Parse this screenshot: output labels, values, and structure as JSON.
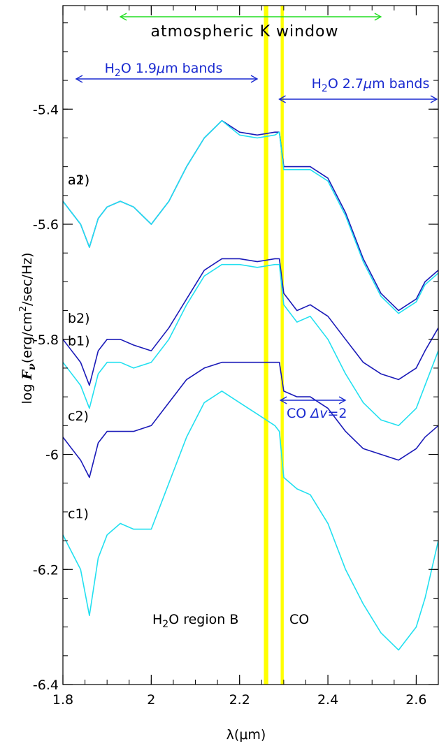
{
  "chart_data": {
    "type": "line",
    "title": "",
    "xlabel": "λ(μm)",
    "ylabel": "log F_ν(erg/cm²/sec/Hz)",
    "ylabel_parts": {
      "prefix": "log ",
      "symbol": "F",
      "subscript": "ν",
      "units_pre": "(erg/cm",
      "units_sup": "2",
      "units_post": "/sec/Hz)"
    },
    "xlim": [
      1.8,
      2.65
    ],
    "ylim": [
      -6.4,
      -5.22
    ],
    "xticks": [
      1.8,
      2.0,
      2.2,
      2.4,
      2.6
    ],
    "xtick_labels": [
      "1.8",
      "2",
      "2.2",
      "2.4",
      "2.6"
    ],
    "yticks": [
      -5.4,
      -5.6,
      -5.8,
      -6.0,
      -6.2,
      -6.4
    ],
    "ytick_labels": [
      "-5.4",
      "-5.6",
      "-5.8",
      "-6",
      "-6.2",
      "-6.4"
    ],
    "grid": false,
    "colors": {
      "dark": "#1a1ab8",
      "mid": "#1f4fd6",
      "cyan": "#22e0f0",
      "blue_anno": "#1a2ad0",
      "green": "#22dd22",
      "band": "#ffff00"
    },
    "highlight_bands": [
      {
        "x0": 2.255,
        "x1": 2.265
      },
      {
        "x0": 2.293,
        "x1": 2.3
      }
    ],
    "annotations": {
      "atm_window": {
        "text": "atmospheric K window",
        "x0": 1.93,
        "x1": 2.52
      },
      "h2o_19": {
        "pre": "H",
        "sub": "2",
        "post": "O 1.9",
        "mu": "μ",
        "tail": "m bands",
        "x0": 1.83,
        "x1": 2.24
      },
      "h2o_27": {
        "pre": "H",
        "sub": "2",
        "post": "O 2.7",
        "mu": "μ",
        "tail": "m bands",
        "x0": 2.29,
        "x1": 2.65
      },
      "co_dv": {
        "pre": "CO ",
        "delta": "Δv",
        "post": "=2",
        "x0": 2.28,
        "x1": 2.43
      },
      "region_b": {
        "pre": "H",
        "sub": "2",
        "post": "O region B"
      },
      "co_label": "CO"
    },
    "series": [
      {
        "label": "a2)",
        "color": "#1a1ab8",
        "x": [
          1.8,
          1.82,
          1.84,
          1.86,
          1.88,
          1.9,
          1.93,
          1.96,
          2.0,
          2.04,
          2.08,
          2.12,
          2.16,
          2.2,
          2.24,
          2.28,
          2.29,
          2.3,
          2.33,
          2.36,
          2.4,
          2.44,
          2.48,
          2.52,
          2.56,
          2.6,
          2.62,
          2.65
        ],
        "y": [
          -5.56,
          -5.58,
          -5.6,
          -5.64,
          -5.59,
          -5.57,
          -5.56,
          -5.57,
          -5.6,
          -5.56,
          -5.5,
          -5.45,
          -5.42,
          -5.44,
          -5.445,
          -5.44,
          -5.44,
          -5.5,
          -5.5,
          -5.5,
          -5.52,
          -5.58,
          -5.66,
          -5.72,
          -5.75,
          -5.73,
          -5.7,
          -5.68
        ]
      },
      {
        "label": "a1)",
        "color": "#22e0f0",
        "x": [
          1.8,
          1.82,
          1.84,
          1.86,
          1.88,
          1.9,
          1.93,
          1.96,
          2.0,
          2.04,
          2.08,
          2.12,
          2.16,
          2.2,
          2.24,
          2.28,
          2.29,
          2.3,
          2.33,
          2.36,
          2.4,
          2.44,
          2.48,
          2.52,
          2.56,
          2.6,
          2.62,
          2.65
        ],
        "y": [
          -5.56,
          -5.58,
          -5.6,
          -5.64,
          -5.59,
          -5.57,
          -5.56,
          -5.57,
          -5.6,
          -5.56,
          -5.5,
          -5.45,
          -5.42,
          -5.445,
          -5.45,
          -5.445,
          -5.44,
          -5.505,
          -5.505,
          -5.505,
          -5.525,
          -5.585,
          -5.665,
          -5.725,
          -5.755,
          -5.735,
          -5.705,
          -5.685
        ]
      },
      {
        "label": "b2)",
        "color": "#1a1ab8",
        "x": [
          1.8,
          1.82,
          1.84,
          1.86,
          1.88,
          1.9,
          1.93,
          1.96,
          2.0,
          2.04,
          2.08,
          2.12,
          2.16,
          2.2,
          2.24,
          2.28,
          2.29,
          2.3,
          2.33,
          2.36,
          2.4,
          2.44,
          2.48,
          2.52,
          2.56,
          2.6,
          2.62,
          2.65
        ],
        "y": [
          -5.8,
          -5.82,
          -5.84,
          -5.88,
          -5.82,
          -5.8,
          -5.8,
          -5.81,
          -5.82,
          -5.78,
          -5.73,
          -5.68,
          -5.66,
          -5.66,
          -5.665,
          -5.66,
          -5.66,
          -5.72,
          -5.75,
          -5.74,
          -5.76,
          -5.8,
          -5.84,
          -5.86,
          -5.87,
          -5.85,
          -5.82,
          -5.78
        ]
      },
      {
        "label": "b1)",
        "color": "#22e0f0",
        "x": [
          1.8,
          1.82,
          1.84,
          1.86,
          1.88,
          1.9,
          1.93,
          1.96,
          2.0,
          2.04,
          2.08,
          2.12,
          2.16,
          2.2,
          2.24,
          2.28,
          2.29,
          2.3,
          2.33,
          2.36,
          2.4,
          2.44,
          2.48,
          2.52,
          2.56,
          2.6,
          2.62,
          2.65
        ],
        "y": [
          -5.84,
          -5.86,
          -5.88,
          -5.92,
          -5.86,
          -5.84,
          -5.84,
          -5.85,
          -5.84,
          -5.8,
          -5.74,
          -5.69,
          -5.67,
          -5.67,
          -5.675,
          -5.67,
          -5.67,
          -5.74,
          -5.77,
          -5.76,
          -5.8,
          -5.86,
          -5.91,
          -5.94,
          -5.95,
          -5.92,
          -5.88,
          -5.82
        ]
      },
      {
        "label": "c2)",
        "color": "#1a1ab8",
        "x": [
          1.8,
          1.82,
          1.84,
          1.86,
          1.88,
          1.9,
          1.93,
          1.96,
          2.0,
          2.04,
          2.08,
          2.12,
          2.16,
          2.2,
          2.24,
          2.28,
          2.29,
          2.3,
          2.33,
          2.36,
          2.4,
          2.44,
          2.48,
          2.52,
          2.56,
          2.6,
          2.62,
          2.65
        ],
        "y": [
          -5.97,
          -5.99,
          -6.01,
          -6.04,
          -5.98,
          -5.96,
          -5.96,
          -5.96,
          -5.95,
          -5.91,
          -5.87,
          -5.85,
          -5.84,
          -5.84,
          -5.84,
          -5.84,
          -5.84,
          -5.89,
          -5.9,
          -5.9,
          -5.92,
          -5.96,
          -5.99,
          -6.0,
          -6.01,
          -5.99,
          -5.97,
          -5.95
        ]
      },
      {
        "label": "c1)",
        "color": "#22e0f0",
        "x": [
          1.8,
          1.82,
          1.84,
          1.86,
          1.88,
          1.9,
          1.93,
          1.96,
          2.0,
          2.04,
          2.08,
          2.12,
          2.16,
          2.2,
          2.24,
          2.28,
          2.29,
          2.3,
          2.33,
          2.36,
          2.4,
          2.44,
          2.48,
          2.52,
          2.56,
          2.6,
          2.62,
          2.65
        ],
        "y": [
          -6.14,
          -6.17,
          -6.2,
          -6.28,
          -6.18,
          -6.14,
          -6.12,
          -6.13,
          -6.13,
          -6.05,
          -5.97,
          -5.91,
          -5.89,
          -5.91,
          -5.93,
          -5.95,
          -5.96,
          -6.04,
          -6.06,
          -6.07,
          -6.12,
          -6.2,
          -6.26,
          -6.31,
          -6.34,
          -6.3,
          -6.25,
          -6.15
        ]
      }
    ]
  }
}
